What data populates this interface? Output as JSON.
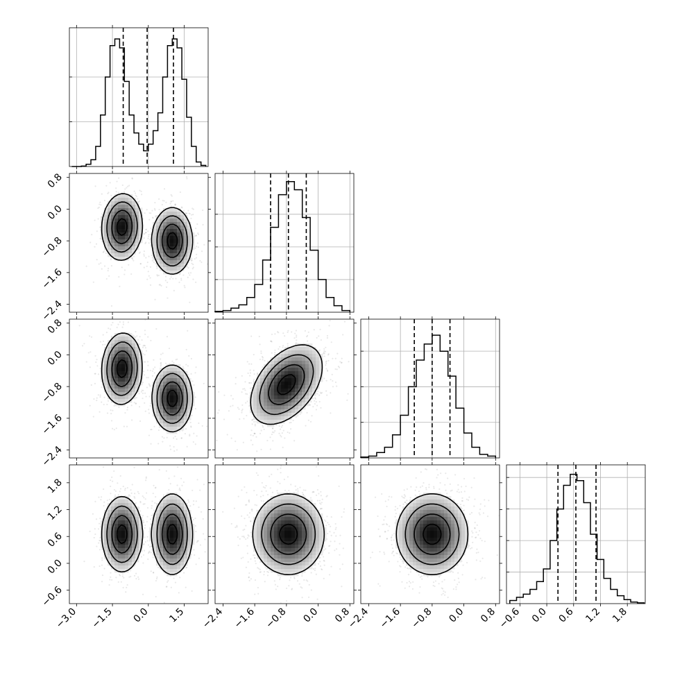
{
  "chart_data": {
    "type": "corner",
    "n_params": 4,
    "grid": true,
    "axes": [
      {
        "range": [
          -3.3,
          2.5
        ],
        "ticks": [
          -3.0,
          -1.5,
          0.0,
          1.5
        ],
        "tick_labels": [
          "−3.0",
          "−1.5",
          "0.0",
          "1.5"
        ]
      },
      {
        "range": [
          -2.6,
          0.9
        ],
        "ticks": [
          -2.4,
          -1.6,
          -0.8,
          0.0,
          0.8
        ],
        "tick_labels": [
          "−2.4",
          "−1.6",
          "−0.8",
          "0.0",
          "0.8"
        ]
      },
      {
        "range": [
          -2.6,
          0.9
        ],
        "ticks": [
          -2.4,
          -1.6,
          -0.8,
          0.0,
          0.8
        ],
        "tick_labels": [
          "−2.4",
          "−1.6",
          "−0.8",
          "0.0",
          "0.8"
        ]
      },
      {
        "range": [
          -0.9,
          2.2
        ],
        "ticks": [
          -0.6,
          0.0,
          0.6,
          1.2,
          1.8
        ],
        "tick_labels": [
          "−0.6",
          "0.0",
          "0.6",
          "1.2",
          "1.8"
        ]
      }
    ],
    "histograms": [
      {
        "param": 0,
        "x": [
          -3.1,
          -2.9,
          -2.7,
          -2.5,
          -2.3,
          -2.1,
          -1.9,
          -1.7,
          -1.5,
          -1.3,
          -1.1,
          -0.9,
          -0.7,
          -0.5,
          -0.3,
          -0.1,
          0.1,
          0.3,
          0.5,
          0.7,
          0.9,
          1.1,
          1.3,
          1.5,
          1.7,
          1.9,
          2.1,
          2.3
        ],
        "values": [
          0,
          0,
          0.002,
          0.01,
          0.03,
          0.09,
          0.23,
          0.4,
          0.54,
          0.57,
          0.53,
          0.38,
          0.23,
          0.15,
          0.1,
          0.07,
          0.1,
          0.16,
          0.24,
          0.4,
          0.54,
          0.57,
          0.53,
          0.39,
          0.22,
          0.09,
          0.02,
          0.005
        ],
        "quantiles": [
          -1.05,
          -0.05,
          1.05
        ],
        "y_ticks": [
          0.2,
          0.4
        ],
        "ylim": [
          0,
          0.62
        ]
      },
      {
        "param": 1,
        "x": [
          -2.5,
          -2.3,
          -2.1,
          -1.9,
          -1.7,
          -1.5,
          -1.3,
          -1.1,
          -0.9,
          -0.7,
          -0.5,
          -0.3,
          -0.1,
          0.1,
          0.3,
          0.5,
          0.7
        ],
        "values": [
          0.005,
          0.01,
          0.025,
          0.045,
          0.09,
          0.17,
          0.32,
          0.52,
          0.72,
          0.8,
          0.75,
          0.58,
          0.38,
          0.2,
          0.09,
          0.04,
          0.01
        ],
        "quantiles": [
          -1.2,
          -0.75,
          -0.3
        ],
        "y_ticks": [
          0.2,
          0.4,
          0.6
        ],
        "ylim": [
          0,
          0.85
        ]
      },
      {
        "param": 2,
        "x": [
          -2.5,
          -2.3,
          -2.1,
          -1.9,
          -1.7,
          -1.5,
          -1.3,
          -1.1,
          -0.9,
          -0.7,
          -0.5,
          -0.3,
          -0.1,
          0.1,
          0.3,
          0.5,
          0.7
        ],
        "values": [
          0.005,
          0.01,
          0.03,
          0.06,
          0.13,
          0.24,
          0.4,
          0.55,
          0.64,
          0.69,
          0.6,
          0.46,
          0.28,
          0.14,
          0.06,
          0.02,
          0.01
        ],
        "quantiles": [
          -1.25,
          -0.8,
          -0.35
        ],
        "y_ticks": [
          0.2,
          0.4,
          0.6
        ],
        "ylim": [
          0,
          0.78
        ]
      },
      {
        "param": 3,
        "x": [
          -0.75,
          -0.6,
          -0.45,
          -0.3,
          -0.15,
          0.0,
          0.15,
          0.3,
          0.45,
          0.6,
          0.75,
          0.9,
          1.05,
          1.2,
          1.35,
          1.5,
          1.65,
          1.8,
          1.95,
          2.1
        ],
        "values": [
          0.02,
          0.04,
          0.06,
          0.09,
          0.14,
          0.22,
          0.4,
          0.6,
          0.75,
          0.82,
          0.78,
          0.64,
          0.44,
          0.28,
          0.16,
          0.09,
          0.05,
          0.025,
          0.01,
          0.005
        ],
        "quantiles": [
          0.25,
          0.65,
          1.1
        ],
        "y_ticks": [
          0.2,
          0.4,
          0.6,
          0.8
        ],
        "ylim": [
          0,
          0.88
        ]
      }
    ],
    "density_2d": [
      {
        "row": 1,
        "col": 0,
        "modes": [
          {
            "x": -1.1,
            "y": -0.45,
            "sx": 0.42,
            "sy": 0.42,
            "rho": 0.05,
            "w": 0.5
          },
          {
            "x": 1.0,
            "y": -0.8,
            "sx": 0.42,
            "sy": 0.42,
            "rho": 0.0,
            "w": 0.5
          }
        ]
      },
      {
        "row": 2,
        "col": 0,
        "modes": [
          {
            "x": -1.1,
            "y": -0.35,
            "sx": 0.42,
            "sy": 0.45,
            "rho": 0.05,
            "w": 0.5
          },
          {
            "x": 1.0,
            "y": -1.1,
            "sx": 0.42,
            "sy": 0.42,
            "rho": 0.0,
            "w": 0.5
          }
        ]
      },
      {
        "row": 2,
        "col": 1,
        "modes": [
          {
            "x": -0.8,
            "y": -0.75,
            "sx": 0.45,
            "sy": 0.5,
            "rho": 0.45,
            "w": 1
          }
        ]
      },
      {
        "row": 3,
        "col": 0,
        "modes": [
          {
            "x": -1.1,
            "y": 0.65,
            "sx": 0.42,
            "sy": 0.42,
            "rho": 0.0,
            "w": 0.5
          },
          {
            "x": 1.0,
            "y": 0.65,
            "sx": 0.42,
            "sy": 0.45,
            "rho": 0.0,
            "w": 0.5
          }
        ]
      },
      {
        "row": 3,
        "col": 1,
        "modes": [
          {
            "x": -0.75,
            "y": 0.65,
            "sx": 0.45,
            "sy": 0.45,
            "rho": 0.0,
            "w": 1
          }
        ]
      },
      {
        "row": 3,
        "col": 2,
        "modes": [
          {
            "x": -0.8,
            "y": 0.65,
            "sx": 0.45,
            "sy": 0.45,
            "rho": 0.0,
            "w": 1
          }
        ]
      }
    ],
    "contour_levels_sigma": [
      0.5,
      1.0,
      1.5,
      2.0
    ],
    "scatter_points_per_panel": 900
  }
}
